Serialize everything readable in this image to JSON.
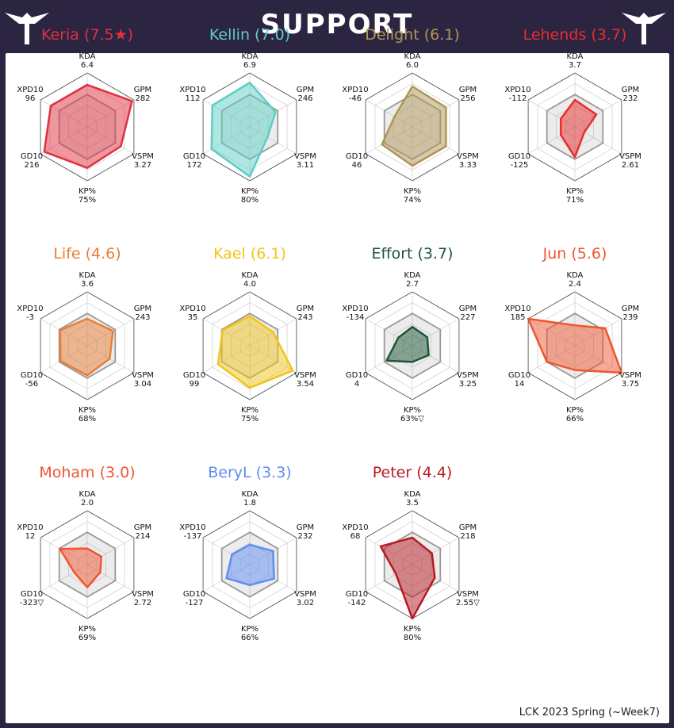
{
  "header": {
    "title": "SUPPORT",
    "logo_icon": "t1-wings-logo-icon"
  },
  "footer": {
    "note": "LCK 2023 Spring (~Week7)"
  },
  "chart_data": [
    {
      "type": "radar",
      "player": "Keria",
      "title": "Keria (7.5★)",
      "color": "#e03040",
      "axes": [
        "KDA",
        "GPM",
        "VSPM",
        "KP%",
        "GD10",
        "XPD10"
      ],
      "labels": [
        "6.4",
        "282",
        "3.27",
        "75%",
        "216",
        "96"
      ],
      "scores": [
        0.78,
        0.96,
        0.72,
        0.76,
        0.92,
        0.78
      ]
    },
    {
      "type": "radar",
      "player": "Kellin",
      "title": "Kellin (7.0)",
      "color": "#5ecdc6",
      "axes": [
        "KDA",
        "GPM",
        "VSPM",
        "KP%",
        "GD10",
        "XPD10"
      ],
      "labels": [
        "6.9",
        "246",
        "3.11",
        "80%",
        "172",
        "112"
      ],
      "scores": [
        0.82,
        0.55,
        0.38,
        0.92,
        0.82,
        0.8
      ]
    },
    {
      "type": "radar",
      "player": "Delight",
      "title": "Delight (6.1)",
      "color": "#b09655",
      "axes": [
        "KDA",
        "GPM",
        "VSPM",
        "KP%",
        "GD10",
        "XPD10"
      ],
      "labels": [
        "6.0",
        "256",
        "3.33",
        "74%",
        "46",
        "-46"
      ],
      "scores": [
        0.75,
        0.72,
        0.72,
        0.72,
        0.65,
        0.38
      ]
    },
    {
      "type": "radar",
      "player": "Lehends",
      "title": "Lehends (3.7)",
      "color": "#e82c2c",
      "axes": [
        "KDA",
        "GPM",
        "VSPM",
        "KP%",
        "GD10",
        "XPD10"
      ],
      "labels": [
        "3.7",
        "232",
        "2.61",
        "71%",
        "-125",
        "-112"
      ],
      "scores": [
        0.5,
        0.46,
        0.2,
        0.56,
        0.3,
        0.3
      ]
    },
    {
      "type": "radar",
      "player": "Life",
      "title": "Life (4.6)",
      "color": "#ea7d35",
      "axes": [
        "KDA",
        "GPM",
        "VSPM",
        "KP%",
        "GD10",
        "XPD10"
      ],
      "labels": [
        "3.6",
        "243",
        "3.04",
        "68%",
        "-56",
        "-3"
      ],
      "scores": [
        0.5,
        0.55,
        0.48,
        0.55,
        0.57,
        0.58
      ]
    },
    {
      "type": "radar",
      "player": "Kael",
      "title": "Kael (6.1)",
      "color": "#f0c419",
      "axes": [
        "KDA",
        "GPM",
        "VSPM",
        "KP%",
        "GD10",
        "XPD10"
      ],
      "labels": [
        "4.0",
        "243",
        "3.54",
        "75%",
        "99",
        "35"
      ],
      "scores": [
        0.55,
        0.5,
        0.92,
        0.78,
        0.68,
        0.58
      ]
    },
    {
      "type": "radar",
      "player": "Effort",
      "title": "Effort (3.7)",
      "color": "#1e5538",
      "axes": [
        "KDA",
        "GPM",
        "VSPM",
        "KP%",
        "GD10",
        "XPD10"
      ],
      "labels": [
        "2.7",
        "227",
        "3.25",
        "63%▽",
        "4",
        "-134"
      ],
      "scores": [
        0.35,
        0.32,
        0.35,
        0.3,
        0.55,
        0.3
      ]
    },
    {
      "type": "radar",
      "player": "Jun",
      "title": "Jun (5.6)",
      "color": "#f05530",
      "axes": [
        "KDA",
        "GPM",
        "VSPM",
        "KP%",
        "GD10",
        "XPD10"
      ],
      "labels": [
        "2.4",
        "239",
        "3.75",
        "66%",
        "14",
        "185"
      ],
      "scores": [
        0.38,
        0.65,
        1.0,
        0.45,
        0.6,
        1.0
      ]
    },
    {
      "type": "radar",
      "player": "Moham",
      "title": "Moham (3.0)",
      "color": "#f05530",
      "axes": [
        "KDA",
        "GPM",
        "VSPM",
        "KP%",
        "GD10",
        "XPD10"
      ],
      "labels": [
        "2.0",
        "214",
        "2.72",
        "69%",
        "-323▽",
        "12"
      ],
      "scores": [
        0.3,
        0.3,
        0.28,
        0.42,
        0.28,
        0.58
      ]
    },
    {
      "type": "radar",
      "player": "BeryL",
      "title": "BeryL (3.3)",
      "color": "#5e8ef2",
      "axes": [
        "KDA",
        "GPM",
        "VSPM",
        "KP%",
        "GD10",
        "XPD10"
      ],
      "labels": [
        "1.8",
        "232",
        "3.02",
        "66%",
        "-127",
        "-137"
      ],
      "scores": [
        0.37,
        0.5,
        0.52,
        0.38,
        0.5,
        0.38
      ]
    },
    {
      "type": "radar",
      "player": "Peter",
      "title": "Peter (4.4)",
      "color": "#b81a22",
      "axes": [
        "KDA",
        "GPM",
        "VSPM",
        "KP%",
        "GD10",
        "XPD10"
      ],
      "labels": [
        "3.5",
        "218",
        "2.55▽",
        "80%",
        "-142",
        "68"
      ],
      "scores": [
        0.5,
        0.42,
        0.48,
        1.0,
        0.35,
        0.68
      ]
    }
  ]
}
